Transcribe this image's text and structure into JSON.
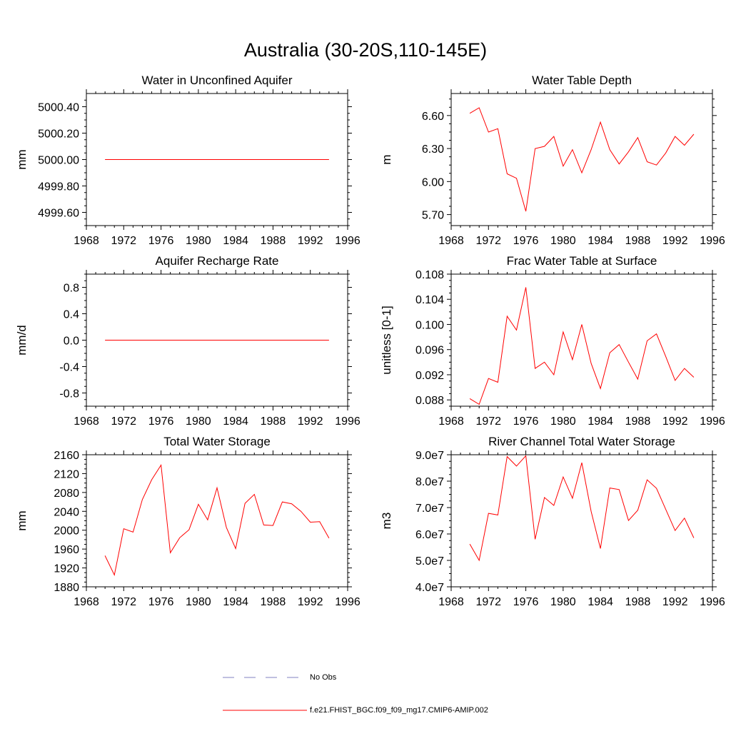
{
  "figure_title": "Australia (30-20S,110-145E)",
  "colors": {
    "model": "#ff0000",
    "obs": "#8080c0",
    "axis": "#000000"
  },
  "legend": {
    "obs_label": "No Obs",
    "model_label": "f.e21.FHIST_BGC.f09_f09_mg17.CMIP6-AMIP.002"
  },
  "chart_data": [
    {
      "type": "line",
      "title": "Water in Unconfined Aquifer",
      "xlabel": "",
      "ylabel": "mm",
      "xlim": [
        1968,
        1996
      ],
      "ylim": [
        4999.5,
        5000.5
      ],
      "xticks": [
        1968,
        1972,
        1976,
        1980,
        1984,
        1988,
        1992,
        1996
      ],
      "yticks": [
        4999.6,
        4999.8,
        5000.0,
        5000.2,
        5000.4
      ],
      "ytick_labels": [
        "4999.60",
        "4999.80",
        "5000.00",
        "5000.20",
        "5000.40"
      ],
      "x": [
        1970,
        1971,
        1972,
        1973,
        1974,
        1975,
        1976,
        1977,
        1978,
        1979,
        1980,
        1981,
        1982,
        1983,
        1984,
        1985,
        1986,
        1987,
        1988,
        1989,
        1990,
        1991,
        1992,
        1993,
        1994
      ],
      "y": [
        5000,
        5000,
        5000,
        5000,
        5000,
        5000,
        5000,
        5000,
        5000,
        5000,
        5000,
        5000,
        5000,
        5000,
        5000,
        5000,
        5000,
        5000,
        5000,
        5000,
        5000,
        5000,
        5000,
        5000,
        5000
      ]
    },
    {
      "type": "line",
      "title": "Water Table Depth",
      "xlabel": "",
      "ylabel": "m",
      "xlim": [
        1968,
        1996
      ],
      "ylim": [
        5.6,
        6.8
      ],
      "xticks": [
        1968,
        1972,
        1976,
        1980,
        1984,
        1988,
        1992,
        1996
      ],
      "yticks": [
        5.7,
        6.0,
        6.3,
        6.6
      ],
      "ytick_labels": [
        "5.70",
        "6.00",
        "6.30",
        "6.60"
      ],
      "x": [
        1970,
        1971,
        1972,
        1973,
        1974,
        1975,
        1976,
        1977,
        1978,
        1979,
        1980,
        1981,
        1982,
        1983,
        1984,
        1985,
        1986,
        1987,
        1988,
        1989,
        1990,
        1991,
        1992,
        1993,
        1994
      ],
      "y": [
        6.62,
        6.67,
        6.45,
        6.48,
        6.07,
        6.03,
        5.73,
        6.3,
        6.32,
        6.41,
        6.14,
        6.29,
        6.08,
        6.29,
        6.54,
        6.29,
        6.16,
        6.27,
        6.4,
        6.18,
        6.15,
        6.26,
        6.41,
        6.33,
        6.43
      ]
    },
    {
      "type": "line",
      "title": "Aquifer Recharge Rate",
      "xlabel": "",
      "ylabel": "mm/d",
      "xlim": [
        1968,
        1996
      ],
      "ylim": [
        -1.0,
        1.0
      ],
      "xticks": [
        1968,
        1972,
        1976,
        1980,
        1984,
        1988,
        1992,
        1996
      ],
      "yticks": [
        -0.8,
        -0.4,
        0.0,
        0.4,
        0.8
      ],
      "ytick_labels": [
        "-0.8",
        "-0.4",
        "0.0",
        "0.4",
        "0.8"
      ],
      "x": [
        1970,
        1971,
        1972,
        1973,
        1974,
        1975,
        1976,
        1977,
        1978,
        1979,
        1980,
        1981,
        1982,
        1983,
        1984,
        1985,
        1986,
        1987,
        1988,
        1989,
        1990,
        1991,
        1992,
        1993,
        1994
      ],
      "y": [
        0,
        0,
        0,
        0,
        0,
        0,
        0,
        0,
        0,
        0,
        0,
        0,
        0,
        0,
        0,
        0,
        0,
        0,
        0,
        0,
        0,
        0,
        0,
        0,
        0
      ]
    },
    {
      "type": "line",
      "title": "Frac Water Table at Surface",
      "xlabel": "",
      "ylabel": "unitless [0-1]",
      "xlim": [
        1968,
        1996
      ],
      "ylim": [
        0.087,
        0.108
      ],
      "xticks": [
        1968,
        1972,
        1976,
        1980,
        1984,
        1988,
        1992,
        1996
      ],
      "yticks": [
        0.088,
        0.092,
        0.096,
        0.1,
        0.104,
        0.108
      ],
      "ytick_labels": [
        "0.088",
        "0.092",
        "0.096",
        "0.100",
        "0.104",
        "0.108"
      ],
      "x": [
        1970,
        1971,
        1972,
        1973,
        1974,
        1975,
        1976,
        1977,
        1978,
        1979,
        1980,
        1981,
        1982,
        1983,
        1984,
        1985,
        1986,
        1987,
        1988,
        1989,
        1990,
        1991,
        1992,
        1993,
        1994
      ],
      "y": [
        0.0882,
        0.0873,
        0.0914,
        0.0908,
        0.1013,
        0.0991,
        0.1059,
        0.093,
        0.094,
        0.092,
        0.0988,
        0.0944,
        0.1,
        0.0938,
        0.0898,
        0.0955,
        0.0968,
        0.094,
        0.0913,
        0.0974,
        0.0985,
        0.0949,
        0.0911,
        0.093,
        0.0916
      ]
    },
    {
      "type": "line",
      "title": "Total Water Storage",
      "xlabel": "",
      "ylabel": "mm",
      "xlim": [
        1968,
        1996
      ],
      "ylim": [
        1880,
        2160
      ],
      "xticks": [
        1968,
        1972,
        1976,
        1980,
        1984,
        1988,
        1992,
        1996
      ],
      "yticks": [
        1880,
        1920,
        1960,
        2000,
        2040,
        2080,
        2120,
        2160
      ],
      "ytick_labels": [
        "1880",
        "1920",
        "1960",
        "2000",
        "2040",
        "2080",
        "2120",
        "2160"
      ],
      "x": [
        1970,
        1971,
        1972,
        1973,
        1974,
        1975,
        1976,
        1977,
        1978,
        1979,
        1980,
        1981,
        1982,
        1983,
        1984,
        1985,
        1986,
        1987,
        1988,
        1989,
        1990,
        1991,
        1992,
        1993,
        1994
      ],
      "y": [
        1946,
        1905,
        2003,
        1996,
        2065,
        2107,
        2138,
        1952,
        1984,
        2001,
        2055,
        2022,
        2090,
        2006,
        1961,
        2057,
        2076,
        2011,
        2010,
        2060,
        2056,
        2040,
        2017,
        2018,
        1983
      ]
    },
    {
      "type": "line",
      "title": "River Channel Total Water Storage",
      "xlabel": "",
      "ylabel": "m3",
      "xlim": [
        1968,
        1996
      ],
      "ylim": [
        40000000,
        90000000
      ],
      "xticks": [
        1968,
        1972,
        1976,
        1980,
        1984,
        1988,
        1992,
        1996
      ],
      "yticks": [
        40000000,
        50000000,
        60000000,
        70000000,
        80000000,
        90000000
      ],
      "ytick_labels": [
        "4.0e7",
        "5.0e7",
        "6.0e7",
        "7.0e7",
        "8.0e7",
        "9.0e7"
      ],
      "x": [
        1970,
        1971,
        1972,
        1973,
        1974,
        1975,
        1976,
        1977,
        1978,
        1979,
        1980,
        1981,
        1982,
        1983,
        1984,
        1985,
        1986,
        1987,
        1988,
        1989,
        1990,
        1991,
        1992,
        1993,
        1994
      ],
      "y": [
        56200000,
        50000000,
        67800000,
        67200000,
        89300000,
        85700000,
        89600000,
        58000000,
        73800000,
        70800000,
        81600000,
        73500000,
        87000000,
        68500000,
        54500000,
        77400000,
        76800000,
        65100000,
        69000000,
        80500000,
        77300000,
        69300000,
        61300000,
        66000000,
        58500000
      ]
    }
  ]
}
